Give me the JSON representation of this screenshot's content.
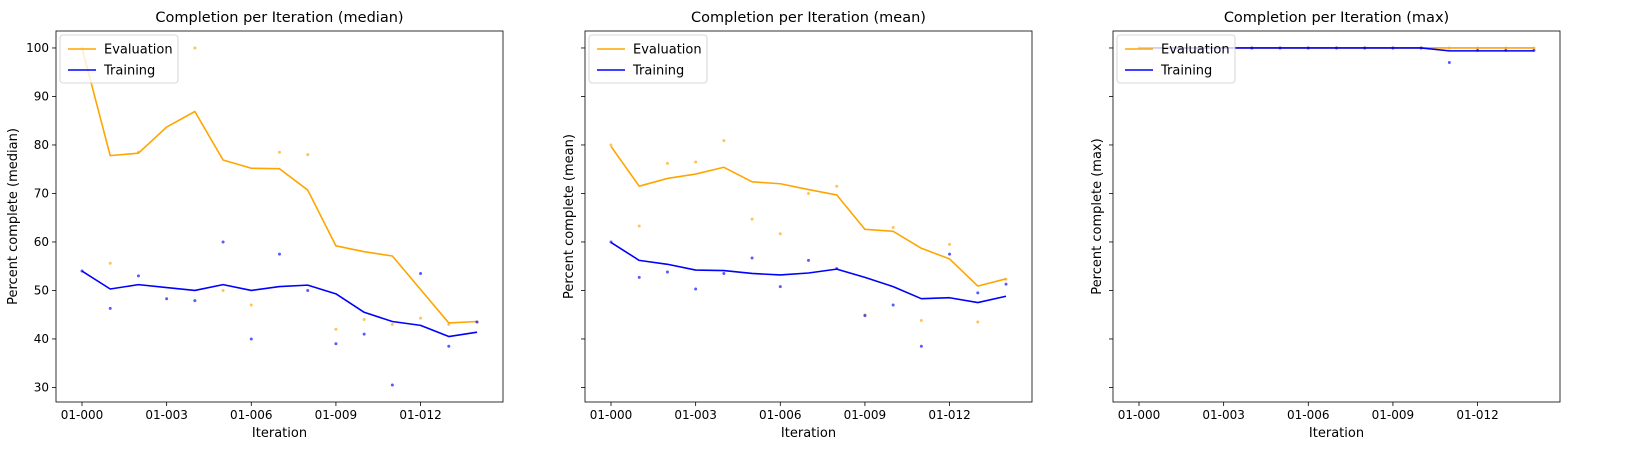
{
  "colors": {
    "evaluation": "#ffa500",
    "training": "#0000ff"
  },
  "chart_data": [
    {
      "type": "line",
      "title": "Completion per Iteration (median)",
      "xlabel": "Iteration",
      "ylabel": "Percent complete (median)",
      "ylim": [
        27,
        103.5
      ],
      "yticks": [
        30,
        40,
        50,
        60,
        70,
        80,
        90,
        100
      ],
      "ytick_labels": [
        "30",
        "40",
        "50",
        "60",
        "70",
        "80",
        "90",
        "100"
      ],
      "x": [
        "01-000",
        "01-001",
        "01-002",
        "01-003",
        "01-004",
        "01-005",
        "01-006",
        "01-007",
        "01-008",
        "01-009",
        "01-010",
        "01-011",
        "01-012",
        "01-013",
        "01-014"
      ],
      "xtick_labels": [
        "01-000",
        "01-003",
        "01-006",
        "01-009",
        "01-012"
      ],
      "legend": "top-left",
      "series": [
        {
          "name": "Evaluation",
          "color": "#ffa500",
          "values": [
            100,
            77.8,
            78.3,
            83.7,
            86.9,
            76.9,
            75.2,
            75.1,
            70.7,
            59.2,
            58.0,
            57.1,
            50.2,
            43.3,
            43.6
          ],
          "points": [
            100,
            55.6,
            78.5,
            null,
            100,
            50.0,
            47.0,
            78.5,
            78.0,
            42.0,
            44.0,
            43.0,
            44.3,
            43.0,
            43.5
          ]
        },
        {
          "name": "Training",
          "color": "#0000ff",
          "values": [
            54.0,
            50.3,
            51.2,
            50.6,
            50.0,
            51.2,
            50.0,
            50.8,
            51.1,
            49.3,
            45.5,
            43.6,
            42.8,
            40.5,
            41.4
          ],
          "points": [
            54.0,
            46.3,
            53.0,
            48.3,
            47.9,
            60.0,
            40.0,
            57.5,
            50.0,
            39.0,
            41.0,
            30.5,
            53.5,
            38.5,
            43.5
          ]
        }
      ]
    },
    {
      "type": "line",
      "title": "Completion per Iteration (mean)",
      "xlabel": "Iteration",
      "ylabel": "Percent complete (mean)",
      "ylim": [
        27,
        103.5
      ],
      "yticks": [
        30,
        40,
        50,
        60,
        70,
        80,
        90,
        100
      ],
      "ytick_labels": [],
      "x": [
        "01-000",
        "01-001",
        "01-002",
        "01-003",
        "01-004",
        "01-005",
        "01-006",
        "01-007",
        "01-008",
        "01-009",
        "01-010",
        "01-011",
        "01-012",
        "01-013",
        "01-014"
      ],
      "xtick_labels": [
        "01-000",
        "01-003",
        "01-006",
        "01-009",
        "01-012"
      ],
      "legend": "top-left",
      "series": [
        {
          "name": "Evaluation",
          "color": "#ffa500",
          "values": [
            79.7,
            71.5,
            73.1,
            74.0,
            75.4,
            72.4,
            72.0,
            70.8,
            69.7,
            62.6,
            62.2,
            58.7,
            56.5,
            50.9,
            52.4
          ],
          "points": [
            80.0,
            63.3,
            76.2,
            76.5,
            80.9,
            64.7,
            61.7,
            70.0,
            71.5,
            45.0,
            63.0,
            43.8,
            59.5,
            43.5,
            52.3
          ]
        },
        {
          "name": "Training",
          "color": "#0000ff",
          "values": [
            59.9,
            56.2,
            55.4,
            54.2,
            54.1,
            53.5,
            53.2,
            53.6,
            54.4,
            52.7,
            50.8,
            48.3,
            48.5,
            47.5,
            48.8
          ],
          "points": [
            60.0,
            52.7,
            53.8,
            50.3,
            53.5,
            56.7,
            50.8,
            56.2,
            54.5,
            44.8,
            47.0,
            38.5,
            57.5,
            49.5,
            51.3
          ]
        }
      ]
    },
    {
      "type": "line",
      "title": "Completion per Iteration (max)",
      "xlabel": "Iteration",
      "ylabel": "Percent complete (max)",
      "ylim": [
        27,
        103.5
      ],
      "yticks": [
        30,
        40,
        50,
        60,
        70,
        80,
        90,
        100
      ],
      "ytick_labels": [],
      "x": [
        "01-000",
        "01-001",
        "01-002",
        "01-003",
        "01-004",
        "01-005",
        "01-006",
        "01-007",
        "01-008",
        "01-009",
        "01-010",
        "01-011",
        "01-012",
        "01-013",
        "01-014"
      ],
      "xtick_labels": [
        "01-000",
        "01-003",
        "01-006",
        "01-009",
        "01-012"
      ],
      "legend": "top-left",
      "series": [
        {
          "name": "Evaluation",
          "color": "#ffa500",
          "values": [
            100,
            100,
            100,
            100,
            100,
            100,
            100,
            100,
            100,
            100,
            100,
            100,
            100,
            100,
            100
          ],
          "points": [
            100,
            100,
            100,
            100,
            100,
            100,
            100,
            100,
            100,
            100,
            100,
            100,
            100,
            100,
            100
          ]
        },
        {
          "name": "Training",
          "color": "#0000ff",
          "values": [
            100,
            100,
            100,
            100,
            100,
            100,
            100,
            100,
            100,
            100,
            100,
            99.4,
            99.4,
            99.4,
            99.4
          ],
          "points": [
            100,
            100,
            100,
            100,
            100,
            100,
            100,
            100,
            100,
            100,
            100,
            97.0,
            99.5,
            99.5,
            99.5
          ]
        }
      ]
    }
  ]
}
